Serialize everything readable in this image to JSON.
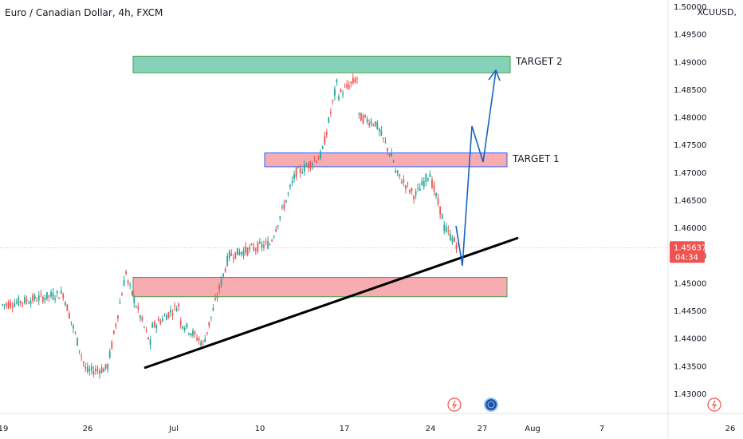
{
  "header": {
    "title": "Euro / Canadian Dollar, 4h, FXCM",
    "symbol": "XCUUSD,"
  },
  "colors": {
    "up": "#26a69a",
    "down": "#ef5350",
    "target2_fill": "#80cfb6",
    "target1_fill": "#f7a8ad",
    "support_fill": "#f7a8ad",
    "zone_border_green": "#43a047",
    "zone_border_blue": "#2962ff",
    "arrow": "#1565c0",
    "trendline": "#000000",
    "price_tag": "#ef5350"
  },
  "chart_data": {
    "type": "candlestick",
    "title": "Euro / Canadian Dollar, 4h, FXCM",
    "ylim": [
      1.4255,
      1.5005
    ],
    "y_ticks": [
      "1.50000",
      "1.49500",
      "1.49000",
      "1.48500",
      "1.48000",
      "1.47500",
      "1.47000",
      "1.46500",
      "1.46000",
      "1.45500",
      "1.45000",
      "1.44500",
      "1.44000",
      "1.43500",
      "1.43000"
    ],
    "x_ticks": [
      "19",
      "26",
      "Jul",
      "10",
      "17",
      "24",
      "27",
      "Aug",
      "7",
      "26"
    ],
    "last_price": "1.45637",
    "countdown": "04:34",
    "grid": false,
    "segments": [
      {
        "bars": 30,
        "from": 1.446,
        "to": 1.448,
        "trend": "flat"
      },
      {
        "bars": 12,
        "from": 1.448,
        "to": 1.4345,
        "trend": "down"
      },
      {
        "bars": 10,
        "from": 1.434,
        "to": 1.4345,
        "trend": "flat"
      },
      {
        "bars": 10,
        "from": 1.435,
        "to": 1.452,
        "trend": "up"
      },
      {
        "bars": 12,
        "from": 1.45,
        "to": 1.439,
        "trend": "down"
      },
      {
        "bars": 14,
        "from": 1.442,
        "to": 1.446,
        "trend": "flat"
      },
      {
        "bars": 12,
        "from": 1.443,
        "to": 1.439,
        "trend": "down"
      },
      {
        "bars": 12,
        "from": 1.44,
        "to": 1.454,
        "trend": "up"
      },
      {
        "bars": 20,
        "from": 1.455,
        "to": 1.457,
        "trend": "flat"
      },
      {
        "bars": 14,
        "from": 1.457,
        "to": 1.47,
        "trend": "up"
      },
      {
        "bars": 12,
        "from": 1.47,
        "to": 1.473,
        "trend": "flat"
      },
      {
        "bars": 8,
        "from": 1.474,
        "to": 1.486,
        "trend": "up"
      },
      {
        "bars": 10,
        "from": 1.484,
        "to": 1.487,
        "trend": "flat"
      },
      {
        "bars": 8,
        "from": 1.48,
        "to": 1.479,
        "trend": "down"
      },
      {
        "bars": 10,
        "from": 1.479,
        "to": 1.472,
        "trend": "down"
      },
      {
        "bars": 10,
        "from": 1.47,
        "to": 1.466,
        "trend": "down"
      },
      {
        "bars": 8,
        "from": 1.466,
        "to": 1.47,
        "trend": "up"
      },
      {
        "bars": 6,
        "from": 1.468,
        "to": 1.462,
        "trend": "down"
      },
      {
        "bars": 8,
        "from": 1.46,
        "to": 1.4565,
        "trend": "down"
      }
    ],
    "annotations": {
      "target2": {
        "label": "TARGET 2",
        "y_top": 1.491,
        "y_bottom": 1.488
      },
      "target1": {
        "label": "TARGET 1",
        "y_top": 1.4735,
        "y_bottom": 1.471
      },
      "support": {
        "label": "",
        "y_top": 1.451,
        "y_bottom": 1.4475
      }
    }
  }
}
